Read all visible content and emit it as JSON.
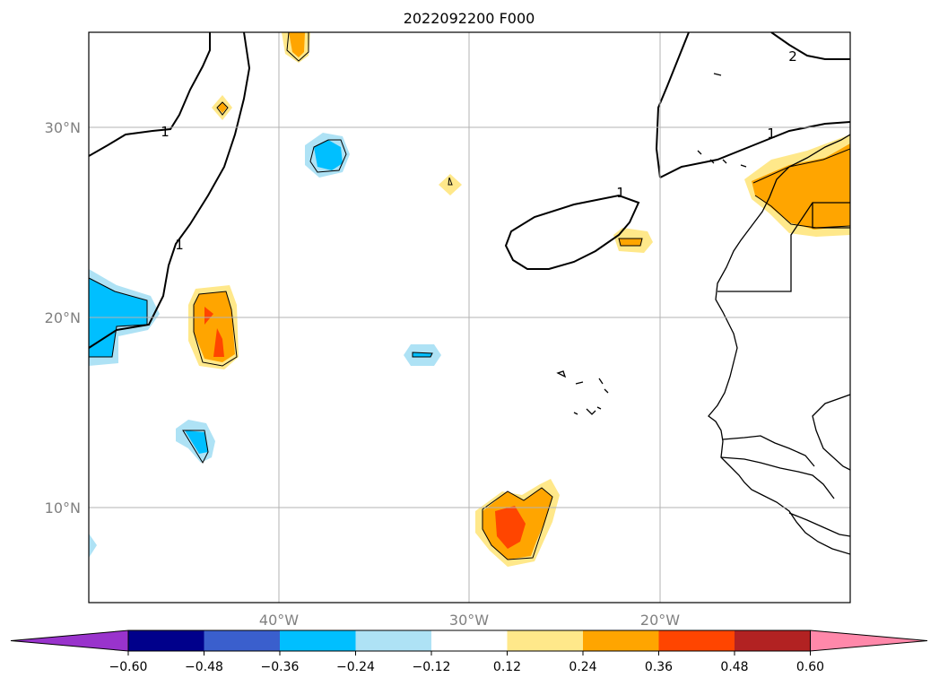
{
  "title": "2022092200 F000",
  "map": {
    "lat_labels": [
      "30°N",
      "20°N",
      "10°N"
    ],
    "lon_labels": [
      "40°W",
      "30°W",
      "20°W"
    ],
    "contour_labels": [
      "1",
      "1",
      "1",
      "1",
      "2"
    ],
    "grid": true
  },
  "colorbar": {
    "ticks": [
      "−0.60",
      "−0.48",
      "−0.36",
      "−0.24",
      "−0.12",
      "0.12",
      "0.24",
      "0.36",
      "0.48",
      "0.60"
    ],
    "colors": [
      "#9933cc",
      "#00008b",
      "#3a5fcd",
      "#00bfff",
      "#aee2f5",
      "#ffffff",
      "#ffe88a",
      "#ffa500",
      "#ff4500",
      "#b22222",
      "#ff88aa"
    ],
    "extend": "both"
  },
  "anomaly_colors": {
    "light_blue": "#aee2f5",
    "blue": "#00bfff",
    "yellow": "#ffe88a",
    "orange": "#ffa500",
    "red": "#ff4500"
  }
}
